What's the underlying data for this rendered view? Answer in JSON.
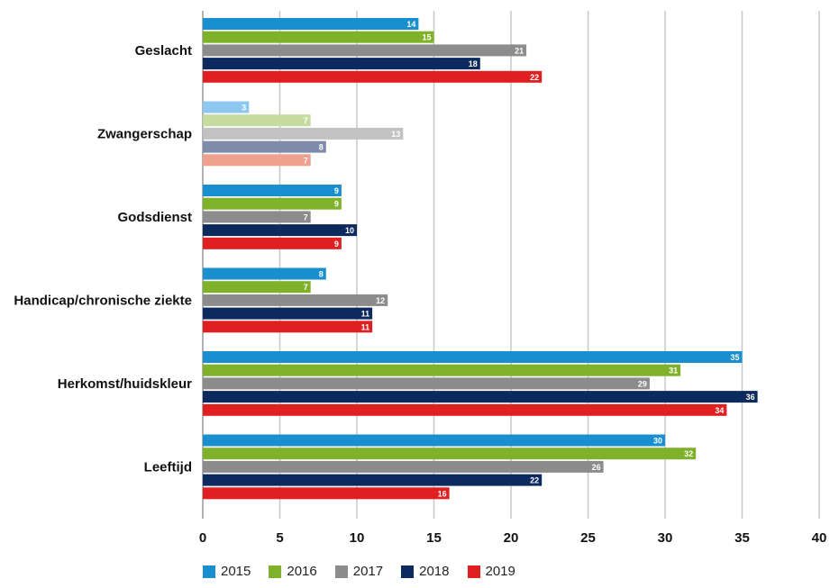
{
  "chart_data": {
    "type": "bar",
    "orientation": "horizontal",
    "categories": [
      "Geslacht",
      "Zwangerschap",
      "Godsdienst",
      "Handicap/chronische ziekte",
      "Herkomst/huidskleur",
      "Leeftijd"
    ],
    "series": [
      {
        "name": "2015",
        "values": [
          14,
          3,
          9,
          8,
          35,
          30
        ]
      },
      {
        "name": "2016",
        "values": [
          15,
          7,
          9,
          7,
          31,
          32
        ]
      },
      {
        "name": "2017",
        "values": [
          21,
          13,
          7,
          12,
          29,
          26
        ]
      },
      {
        "name": "2018",
        "values": [
          18,
          8,
          10,
          11,
          36,
          22
        ]
      },
      {
        "name": "2019",
        "values": [
          22,
          7,
          9,
          11,
          34,
          16
        ]
      }
    ],
    "xlim": [
      0,
      40
    ],
    "xticks": [
      "0",
      "5",
      "10",
      "15",
      "20",
      "25",
      "30",
      "35",
      "40"
    ],
    "grid": true,
    "legend_position": "bottom",
    "colors": [
      "#1a8fd0",
      "#7fb22a",
      "#8c8c8c",
      "#0d2a5e",
      "#e02020"
    ],
    "faded_colors": [
      "#8fc8ee",
      "#c6dba0",
      "#c2c2c2",
      "#7f8bab",
      "#f0a08e"
    ],
    "faded_category": "Zwangerschap"
  }
}
